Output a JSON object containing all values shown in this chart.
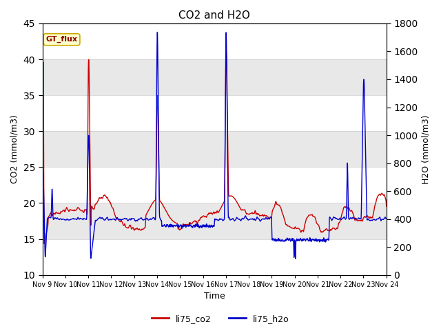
{
  "title": "CO2 and H2O",
  "xlabel": "Time",
  "ylabel_left": "CO2 (mmol/m3)",
  "ylabel_right": "H2O (mmol/m3)",
  "ylim_left": [
    10,
    45
  ],
  "ylim_right": [
    0,
    1800
  ],
  "yticks_left": [
    10,
    15,
    20,
    25,
    30,
    35,
    40,
    45
  ],
  "yticks_right": [
    0,
    200,
    400,
    600,
    800,
    1000,
    1200,
    1400,
    1600,
    1800
  ],
  "xticklabels": [
    "Nov 9",
    "Nov 10",
    "Nov 11",
    "Nov 12",
    "Nov 13",
    "Nov 14",
    "Nov 15",
    "Nov 16",
    "Nov 17",
    "Nov 18",
    "Nov 19",
    "Nov 20",
    "Nov 21",
    "Nov 22",
    "Nov 23",
    "Nov 24"
  ],
  "co2_color": "#cc0000",
  "h2o_color": "#0000cc",
  "annotation_text": "GT_flux",
  "annotation_bg": "#ffffcc",
  "annotation_border": "#ccaa00",
  "band_color1": "#e8e8e8",
  "band_color2": "#f5f5f5",
  "legend_co2": "li75_co2",
  "legend_h2o": "li75_h2o",
  "linewidth": 1.0,
  "figsize": [
    6.4,
    4.8
  ],
  "dpi": 100
}
